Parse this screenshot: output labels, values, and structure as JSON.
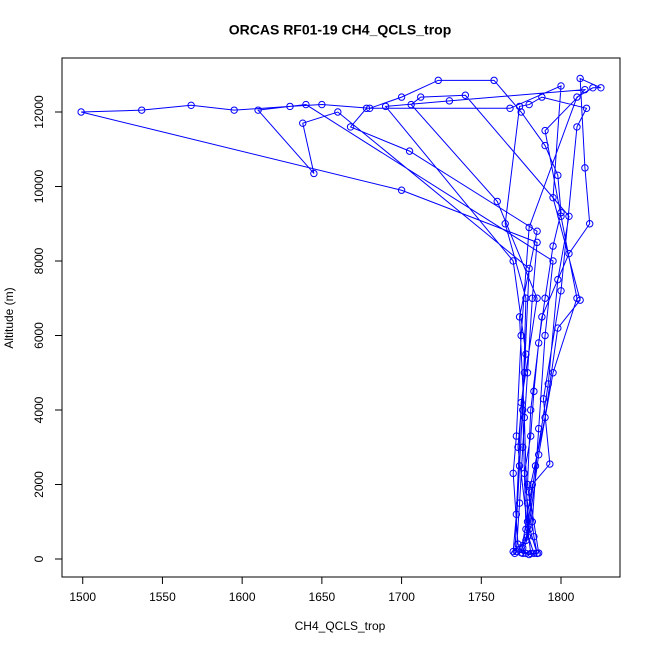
{
  "chart_data": {
    "type": "line",
    "marker": "circle",
    "title": "ORCAS RF01-19 CH4_QCLS_trop",
    "x_label": "CH4_QCLS_trop",
    "y_label": "Altitude (m)",
    "xlim": [
      1487,
      1837
    ],
    "ylim": [
      -483,
      13450
    ],
    "xticks": [
      1500,
      1550,
      1600,
      1650,
      1700,
      1750,
      1800
    ],
    "yticks": [
      0,
      2000,
      4000,
      6000,
      8000,
      10000,
      12000
    ],
    "x": [
      1778,
      1776,
      1780,
      1779,
      1777,
      1781,
      1783,
      1786,
      1790,
      1795,
      1800,
      1798,
      1790,
      1775,
      1758,
      1723,
      1700,
      1680,
      1650,
      1630,
      1595,
      1568,
      1537,
      1499,
      1700,
      1785,
      1782,
      1779,
      1776,
      1774,
      1772,
      1780,
      1785,
      1783,
      1779,
      1781,
      1788,
      1805,
      1818,
      1815,
      1812,
      1825,
      1820,
      1810,
      1780,
      1775,
      1772,
      1770,
      1773,
      1776,
      1782,
      1786,
      1790,
      1795,
      1640,
      1610,
      1645,
      1638,
      1660,
      1780,
      1777,
      1774,
      1771,
      1778,
      1784,
      1792,
      1798,
      1805,
      1740,
      1712,
      1706,
      1760,
      1785,
      1775,
      1772,
      1770,
      1779,
      1786,
      1795,
      1810,
      1800,
      1790,
      1815,
      1730,
      1690,
      1770,
      1778,
      1773,
      1781,
      1786,
      1780,
      1790,
      1798,
      1812,
      1795,
      1800,
      1768,
      1678,
      1668,
      1705,
      1785,
      1774,
      1777,
      1779,
      1785,
      1775,
      1782,
      1793,
      1789,
      1800,
      1810,
      1816,
      1788,
      1780,
      1774,
      1765,
      1778,
      1776,
      1778,
      1783
    ],
    "series": [
      {
        "color": "#0000ff",
        "values": [
          150,
          300,
          800,
          1500,
          2300,
          3300,
          4500,
          5800,
          7000,
          8400,
          9300,
          10300,
          11100,
          12000,
          12850,
          12850,
          12400,
          12100,
          12200,
          12150,
          12050,
          12180,
          12050,
          12000,
          9900,
          8500,
          7000,
          5000,
          3000,
          1500,
          200,
          120,
          150,
          600,
          2000,
          4000,
          6500,
          8200,
          9000,
          10500,
          12900,
          12650,
          12650,
          12400,
          8900,
          6000,
          3300,
          2300,
          400,
          150,
          1000,
          3500,
          6000,
          8000,
          12200,
          12050,
          10350,
          11700,
          12000,
          7800,
          5000,
          2500,
          150,
          500,
          2500,
          4700,
          7500,
          9200,
          12450,
          12400,
          12200,
          9600,
          7000,
          4200,
          1200,
          200,
          600,
          2800,
          5000,
          7000,
          9200,
          11500,
          12600,
          12300,
          12150,
          8000,
          5500,
          3000,
          150,
          160,
          1800,
          3800,
          6200,
          6950,
          9700,
          12700,
          12100,
          12100,
          11600,
          10950,
          8800,
          6500,
          3800,
          1000,
          150,
          170,
          2000,
          2550,
          4300,
          7200,
          11600,
          12100,
          12400,
          12200,
          12150,
          9000,
          7000,
          4000,
          800,
          150
        ]
      }
    ]
  }
}
